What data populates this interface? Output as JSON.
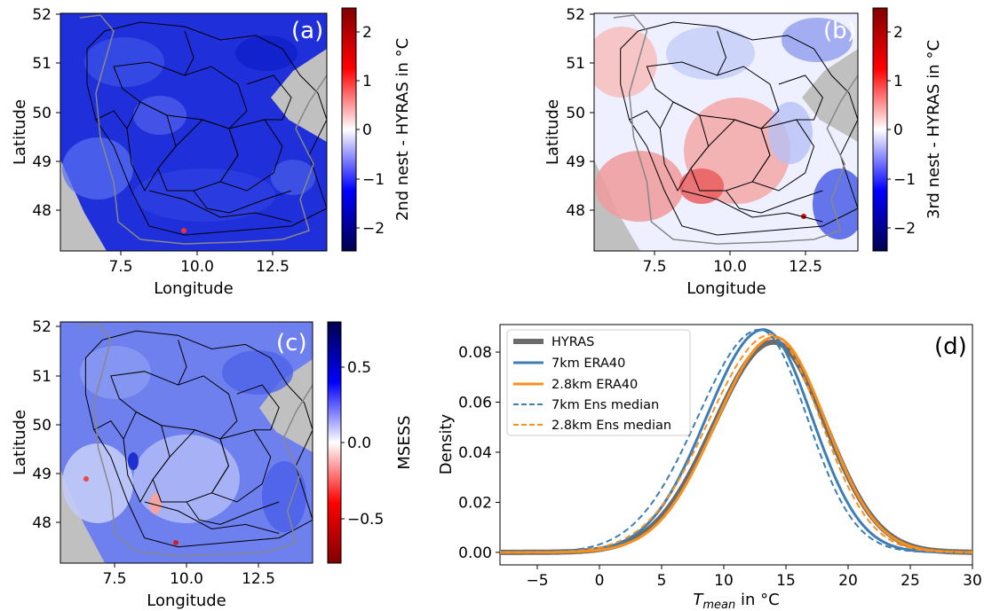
{
  "chart_data": [
    {
      "id": "a",
      "type": "heatmap",
      "panel_label": "(a)",
      "xlabel": "Longitude",
      "ylabel": "Latitude",
      "xticks": [
        "7.5",
        "10.0",
        "12.5"
      ],
      "yticks": [
        "48",
        "49",
        "50",
        "51",
        "52"
      ],
      "xlim": [
        5.5,
        14.3
      ],
      "ylim": [
        47.2,
        52.1
      ],
      "colorbar": {
        "label": "2nd nest - HYRAS in °C",
        "ticks": [
          "−2",
          "−1",
          "0",
          "1",
          "2"
        ],
        "range": [
          -2.5,
          2.5
        ],
        "colormap": "seismic"
      },
      "summary": "predominantly negative (blue) differences across the domain"
    },
    {
      "id": "b",
      "type": "heatmap",
      "panel_label": "(b)",
      "xlabel": "Longitude",
      "ylabel": "Latitude",
      "xticks": [
        "7.5",
        "10.0",
        "12.5"
      ],
      "yticks": [
        "48",
        "49",
        "50",
        "51",
        "52"
      ],
      "xlim": [
        5.5,
        14.3
      ],
      "ylim": [
        47.2,
        52.1
      ],
      "colorbar": {
        "label": "3rd nest - HYRAS in °C",
        "ticks": [
          "−2",
          "−1",
          "0",
          "1",
          "2"
        ],
        "range": [
          -2.5,
          2.5
        ],
        "colormap": "seismic"
      },
      "summary": "mixed differences, positive (red) in south-west, negative (blue) in north and east"
    },
    {
      "id": "c",
      "type": "heatmap",
      "panel_label": "(c)",
      "xlabel": "Longitude",
      "ylabel": "Latitude",
      "xticks": [
        "7.5",
        "10.0",
        "12.5"
      ],
      "yticks": [
        "48",
        "49",
        "50",
        "51",
        "52"
      ],
      "xlim": [
        5.5,
        14.3
      ],
      "ylim": [
        47.2,
        52.1
      ],
      "colorbar": {
        "label": "MSESS",
        "ticks": [
          "−0.5",
          "0.0",
          "0.5"
        ],
        "range": [
          -0.75,
          0.75
        ],
        "colormap": "seismic_r"
      },
      "summary": "mostly positive skill score (blue), isolated negative spots"
    },
    {
      "id": "d",
      "type": "line",
      "panel_label": "(d)",
      "xlabel_main": "T",
      "xlabel_sub": "mean",
      "xlabel_unit": " in °C",
      "ylabel": "Density",
      "xlim": [
        -8,
        30
      ],
      "ylim": [
        -0.005,
        0.091
      ],
      "xticks": [
        -5,
        0,
        5,
        10,
        15,
        20,
        25,
        30
      ],
      "xtick_labels": [
        "−5",
        "0",
        "5",
        "10",
        "15",
        "20",
        "25",
        "30"
      ],
      "yticks": [
        0.0,
        0.02,
        0.04,
        0.06,
        0.08
      ],
      "ytick_labels": [
        "0.00",
        "0.02",
        "0.04",
        "0.06",
        "0.08"
      ],
      "legend_position": "top-left",
      "series": [
        {
          "name": "HYRAS",
          "color": "#6b6b6b",
          "style": "solid",
          "width": 6,
          "mean": 14.0,
          "std_left": 4.8,
          "std_right": 4.2,
          "peak": 0.084
        },
        {
          "name": "7km ERA40",
          "color": "#3c7db5",
          "style": "solid",
          "width": 3,
          "mean": 13.2,
          "std_left": 4.6,
          "std_right": 3.9,
          "peak": 0.089
        },
        {
          "name": "2.8km ERA40",
          "color": "#f7901e",
          "style": "solid",
          "width": 3,
          "mean": 14.1,
          "std_left": 4.7,
          "std_right": 4.1,
          "peak": 0.086
        },
        {
          "name": "7km Ens median",
          "color": "#3c7db5",
          "style": "dashed",
          "width": 2,
          "mean": 12.9,
          "std_left": 5.0,
          "std_right": 3.8,
          "peak": 0.089
        },
        {
          "name": "2.8km Ens median",
          "color": "#f7901e",
          "style": "dashed",
          "width": 2,
          "mean": 13.8,
          "std_left": 5.0,
          "std_right": 4.0,
          "peak": 0.087
        }
      ]
    }
  ]
}
